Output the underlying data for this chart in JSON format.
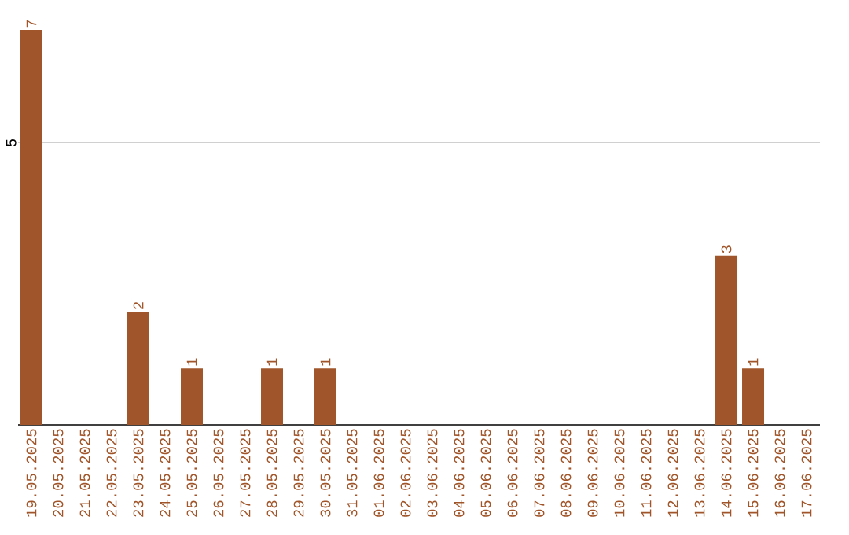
{
  "chart_data": {
    "type": "bar",
    "categories": [
      "19.05.2025",
      "20.05.2025",
      "21.05.2025",
      "22.05.2025",
      "23.05.2025",
      "24.05.2025",
      "25.05.2025",
      "26.05.2025",
      "27.05.2025",
      "28.05.2025",
      "29.05.2025",
      "30.05.2025",
      "31.05.2025",
      "01.06.2025",
      "02.06.2025",
      "03.06.2025",
      "04.06.2025",
      "05.06.2025",
      "06.06.2025",
      "07.06.2025",
      "08.06.2025",
      "09.06.2025",
      "10.06.2025",
      "11.06.2025",
      "12.06.2025",
      "13.06.2025",
      "14.06.2025",
      "15.06.2025",
      "16.06.2025",
      "17.06.2025"
    ],
    "values": [
      7,
      0,
      0,
      0,
      2,
      0,
      1,
      0,
      0,
      1,
      0,
      1,
      0,
      0,
      0,
      0,
      0,
      0,
      0,
      0,
      0,
      0,
      0,
      0,
      0,
      0,
      3,
      1,
      0,
      0
    ],
    "value_labels": [
      "7",
      null,
      null,
      null,
      "2",
      null,
      "1",
      null,
      null,
      "1",
      null,
      "1",
      null,
      null,
      null,
      null,
      null,
      null,
      null,
      null,
      null,
      null,
      null,
      null,
      null,
      null,
      "3",
      "1",
      null,
      null
    ],
    "color": "#a0562a",
    "ylim": [
      0,
      7
    ],
    "yticks": [
      5
    ],
    "grid": "y"
  }
}
